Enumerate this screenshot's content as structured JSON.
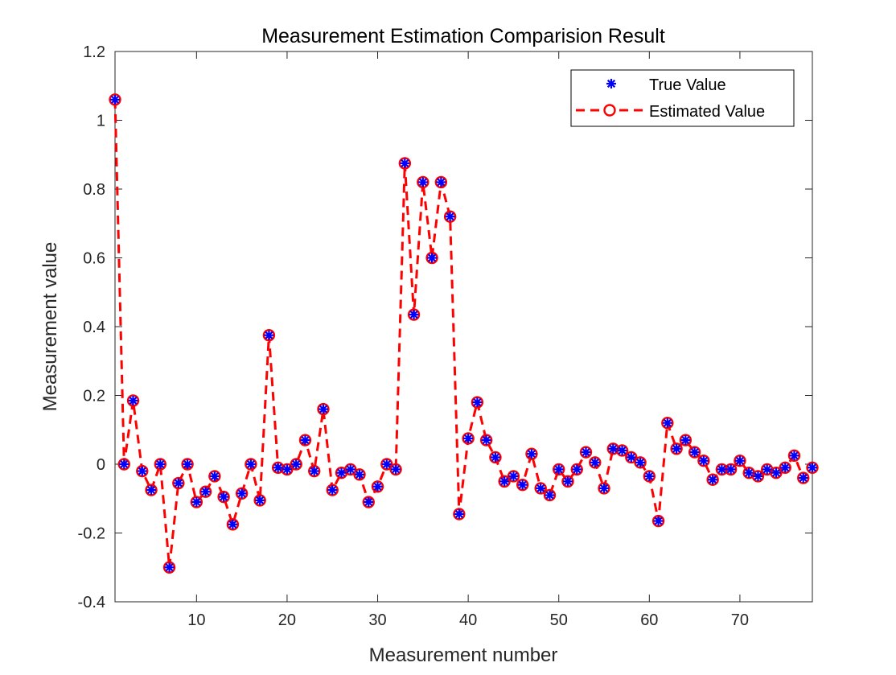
{
  "chart_data": {
    "type": "line",
    "title": "Measurement Estimation Comparision Result",
    "xlabel": "Measurement number",
    "ylabel": "Measurement value",
    "xlim": [
      1,
      78
    ],
    "ylim": [
      -0.4,
      1.2
    ],
    "xticks": [
      10,
      20,
      30,
      40,
      50,
      60,
      70
    ],
    "xtick_labels": [
      "10",
      "20",
      "30",
      "40",
      "50",
      "60",
      "70"
    ],
    "yticks": [
      -0.4,
      -0.2,
      0,
      0.2,
      0.4,
      0.6,
      0.8,
      1,
      1.2
    ],
    "ytick_labels": [
      "-0.4",
      "-0.2",
      "0",
      "0.2",
      "0.4",
      "0.6",
      "0.8",
      "1",
      "1.2"
    ],
    "grid": false,
    "legend_position": "top-right",
    "x": [
      1,
      2,
      3,
      4,
      5,
      6,
      7,
      8,
      9,
      10,
      11,
      12,
      13,
      14,
      15,
      16,
      17,
      18,
      19,
      20,
      21,
      22,
      23,
      24,
      25,
      26,
      27,
      28,
      29,
      30,
      31,
      32,
      33,
      34,
      35,
      36,
      37,
      38,
      39,
      40,
      41,
      42,
      43,
      44,
      45,
      46,
      47,
      48,
      49,
      50,
      51,
      52,
      53,
      54,
      55,
      56,
      57,
      58,
      59,
      60,
      61,
      62,
      63,
      64,
      65,
      66,
      67,
      68,
      69,
      70,
      71,
      72,
      73,
      74,
      75,
      76,
      77,
      78
    ],
    "series": [
      {
        "name": "True Value",
        "marker": "asterisk",
        "line": "none",
        "color": "#0000ff",
        "values": [
          1.06,
          0.0,
          0.185,
          -0.02,
          -0.075,
          0.0,
          -0.3,
          -0.055,
          0.0,
          -0.11,
          -0.08,
          -0.035,
          -0.095,
          -0.175,
          -0.085,
          0.0,
          -0.105,
          0.375,
          -0.01,
          -0.015,
          0.0,
          0.07,
          -0.02,
          0.16,
          -0.075,
          -0.025,
          -0.015,
          -0.03,
          -0.11,
          -0.065,
          0.0,
          -0.015,
          0.875,
          0.435,
          0.82,
          0.6,
          0.82,
          0.72,
          -0.145,
          0.075,
          0.18,
          0.07,
          0.02,
          -0.05,
          -0.035,
          -0.06,
          0.03,
          -0.07,
          -0.09,
          -0.015,
          -0.05,
          -0.015,
          0.035,
          0.005,
          -0.07,
          0.045,
          0.04,
          0.02,
          0.005,
          -0.035,
          -0.165,
          0.12,
          0.045,
          0.07,
          0.035,
          0.01,
          -0.045,
          -0.015,
          -0.015,
          0.01,
          -0.025,
          -0.035,
          -0.015,
          -0.025,
          -0.01,
          0.025,
          -0.04,
          -0.01
        ]
      },
      {
        "name": "Estimated Value",
        "marker": "circle",
        "line": "dashed",
        "color": "#ff0000",
        "values": [
          1.06,
          0.0,
          0.185,
          -0.02,
          -0.075,
          0.0,
          -0.3,
          -0.055,
          0.0,
          -0.11,
          -0.08,
          -0.035,
          -0.095,
          -0.175,
          -0.085,
          0.0,
          -0.105,
          0.375,
          -0.01,
          -0.015,
          0.0,
          0.07,
          -0.02,
          0.16,
          -0.075,
          -0.025,
          -0.015,
          -0.03,
          -0.11,
          -0.065,
          0.0,
          -0.015,
          0.875,
          0.435,
          0.82,
          0.6,
          0.82,
          0.72,
          -0.145,
          0.075,
          0.18,
          0.07,
          0.02,
          -0.05,
          -0.035,
          -0.06,
          0.03,
          -0.07,
          -0.09,
          -0.015,
          -0.05,
          -0.015,
          0.035,
          0.005,
          -0.07,
          0.045,
          0.04,
          0.02,
          0.005,
          -0.035,
          -0.165,
          0.12,
          0.045,
          0.07,
          0.035,
          0.01,
          -0.045,
          -0.015,
          -0.015,
          0.01,
          -0.025,
          -0.035,
          -0.015,
          -0.025,
          -0.01,
          0.025,
          -0.04,
          -0.01
        ]
      }
    ]
  }
}
